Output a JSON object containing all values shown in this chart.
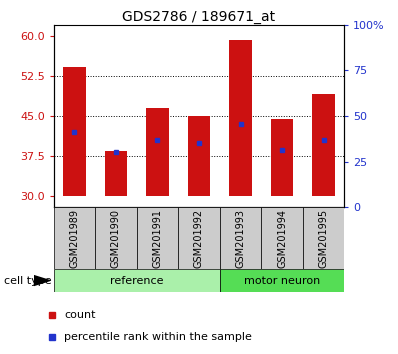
{
  "title": "GDS2786 / 189671_at",
  "samples": [
    "GSM201989",
    "GSM201990",
    "GSM201991",
    "GSM201992",
    "GSM201993",
    "GSM201994",
    "GSM201995"
  ],
  "bar_values": [
    54.2,
    38.5,
    46.5,
    45.0,
    59.2,
    44.5,
    49.0
  ],
  "blue_marker_values": [
    42.0,
    38.2,
    40.5,
    40.0,
    43.5,
    38.7,
    40.5
  ],
  "bar_bottom": 30,
  "ylim_left": [
    28,
    62
  ],
  "ylim_right": [
    0,
    100
  ],
  "yticks_left": [
    30,
    37.5,
    45,
    52.5,
    60
  ],
  "yticks_right": [
    0,
    25,
    50,
    75,
    100
  ],
  "bar_color": "#cc1111",
  "blue_color": "#2233cc",
  "groups": [
    {
      "label": "reference",
      "indices": [
        0,
        1,
        2,
        3
      ],
      "color": "#aaf0aa"
    },
    {
      "label": "motor neuron",
      "indices": [
        4,
        5,
        6
      ],
      "color": "#55dd55"
    }
  ],
  "cell_type_label": "cell type",
  "legend_items": [
    {
      "label": "count",
      "color": "#cc1111"
    },
    {
      "label": "percentile rank within the sample",
      "color": "#2233cc"
    }
  ],
  "bar_width": 0.55,
  "title_fontsize": 10,
  "tick_fontsize": 8,
  "label_fontsize": 8,
  "group_label_fontsize": 8,
  "bg_color": "#cccccc"
}
